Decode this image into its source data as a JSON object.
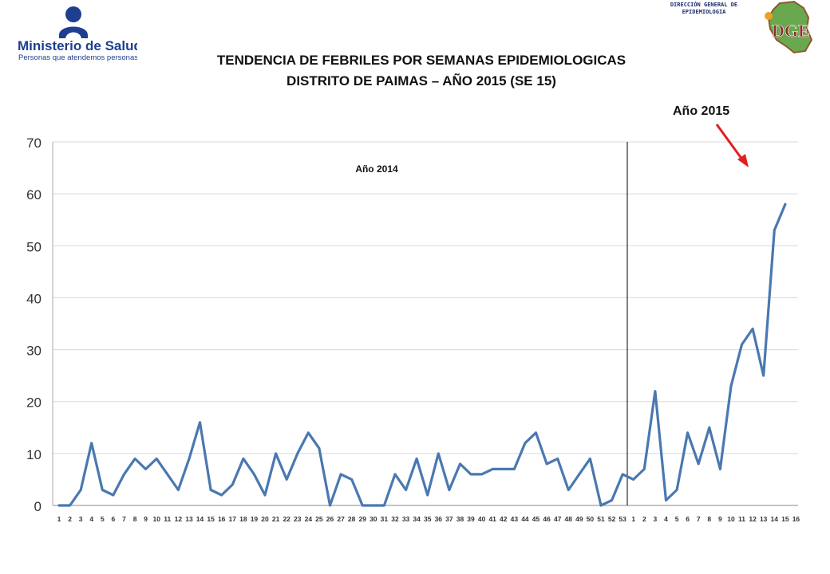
{
  "header": {
    "ministry_name": "Ministerio de Salud",
    "ministry_tagline": "Personas que atendemos personas",
    "dge_label": [
      "DIRECCIÓN GENERAL DE",
      "EPIDEMIOLOGIA"
    ],
    "dge_logo_text": "DGE"
  },
  "colors": {
    "series": "#4a78b0",
    "grid": "#d9d9d9",
    "arrow": "#e02020",
    "minsa_blue": "#1e3f8f"
  },
  "chart_data": {
    "type": "line",
    "title": "TENDENCIA DE FEBRILES POR SEMANAS EPIDEMIOLOGICAS",
    "subtitle": "DISTRITO DE PAIMAS   – AÑO 2015 (SE 15)",
    "ylim": [
      0,
      70
    ],
    "yticks": [
      0,
      10,
      20,
      30,
      40,
      50,
      60,
      70
    ],
    "grid": true,
    "annotations": [
      "Año 2014",
      "Año 2015"
    ],
    "categories": [
      "1",
      "2",
      "3",
      "4",
      "5",
      "6",
      "7",
      "8",
      "9",
      "10",
      "11",
      "12",
      "13",
      "14",
      "15",
      "16",
      "17",
      "18",
      "19",
      "20",
      "21",
      "22",
      "23",
      "24",
      "25",
      "26",
      "27",
      "28",
      "29",
      "30",
      "31",
      "32",
      "33",
      "34",
      "35",
      "36",
      "37",
      "38",
      "39",
      "40",
      "41",
      "42",
      "43",
      "44",
      "45",
      "46",
      "47",
      "48",
      "49",
      "50",
      "51",
      "52",
      "53",
      "1",
      "2",
      "3",
      "4",
      "5",
      "6",
      "7",
      "8",
      "9",
      "10",
      "11",
      "12",
      "13",
      "14",
      "15",
      "16"
    ],
    "series": [
      {
        "values": [
          0,
          0,
          3,
          12,
          3,
          2,
          6,
          9,
          7,
          9,
          6,
          3,
          9,
          16,
          3,
          2,
          4,
          9,
          6,
          2,
          10,
          5,
          10,
          14,
          11,
          0,
          6,
          5,
          0,
          0,
          0,
          6,
          3,
          9,
          2,
          10,
          3,
          8,
          6,
          6,
          7,
          7,
          7,
          12,
          14,
          8,
          9,
          3,
          6,
          9,
          0,
          1,
          6,
          5,
          7,
          22,
          1,
          3,
          14,
          8,
          15,
          7,
          23,
          31,
          34,
          25,
          53,
          58,
          null
        ]
      }
    ]
  }
}
